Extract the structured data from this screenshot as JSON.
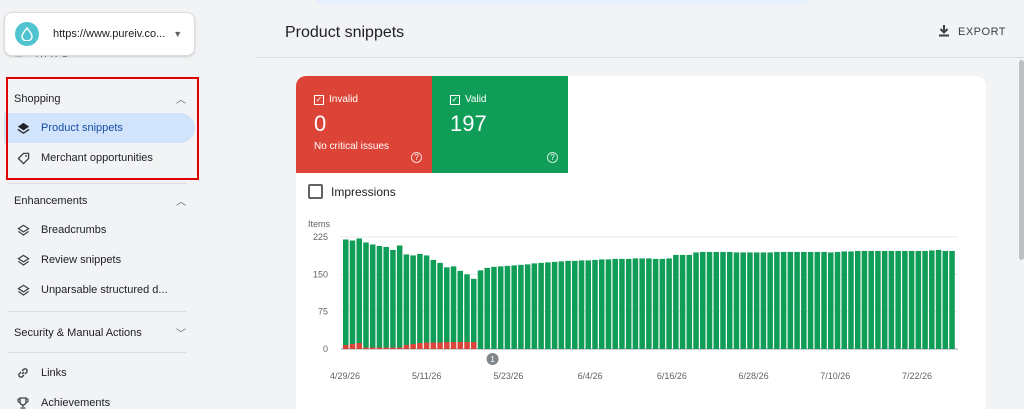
{
  "sidebar": {
    "property": {
      "url": "https://www.pureiv.co..."
    },
    "shopping": {
      "title": "Shopping",
      "items": [
        {
          "label": "Product snippets",
          "active": true
        },
        {
          "label": "Merchant opportunities",
          "active": false
        }
      ]
    },
    "enhancements": {
      "title": "Enhancements",
      "items": [
        {
          "label": "Breadcrumbs"
        },
        {
          "label": "Review snippets"
        },
        {
          "label": "Unparsable structured d..."
        }
      ]
    },
    "security": {
      "title": "Security & Manual Actions"
    },
    "other": [
      {
        "label": "Links"
      },
      {
        "label": "Achievements"
      }
    ]
  },
  "header": {
    "title": "Product snippets",
    "export_label": "EXPORT"
  },
  "stats": {
    "invalid": {
      "label": "Invalid",
      "value": "0",
      "sub": "No critical issues"
    },
    "valid": {
      "label": "Valid",
      "value": "197"
    }
  },
  "impressions_label": "Impressions",
  "colors": {
    "invalid": "#db4437",
    "valid": "#0f9d58",
    "active_nav": "#d2e3fc"
  },
  "chart_data": {
    "type": "bar",
    "stacked": true,
    "ylabel": "Items",
    "ylim": [
      0,
      225
    ],
    "yticks": [
      0,
      75,
      150,
      225
    ],
    "xtick_labels": [
      "4/29/26",
      "5/11/26",
      "5/23/26",
      "6/4/26",
      "6/16/26",
      "6/28/26",
      "7/10/26",
      "7/22/26"
    ],
    "annotation": "1",
    "series": [
      {
        "color": "#db4437",
        "values": [
          8,
          10,
          12,
          3,
          3,
          3,
          3,
          3,
          3,
          8,
          10,
          12,
          13,
          13,
          13,
          14,
          14,
          14,
          14,
          14,
          0,
          0,
          0,
          0,
          0,
          0,
          0,
          0,
          0,
          0,
          0,
          0,
          0,
          0,
          0,
          0,
          0,
          0,
          0,
          0,
          0,
          0,
          0,
          0,
          0,
          0,
          0,
          0,
          0,
          0,
          0,
          0,
          0,
          0,
          0,
          0,
          0,
          0,
          0,
          0,
          0,
          0,
          0,
          0,
          0,
          0,
          0,
          0,
          0,
          0,
          0,
          0,
          0,
          0,
          0,
          0,
          0,
          0,
          0,
          0,
          0,
          0,
          0,
          0,
          0,
          0,
          0,
          0,
          0,
          0,
          0
        ]
      },
      {
        "color": "#0f9d58",
        "values": [
          212,
          208,
          210,
          211,
          207,
          204,
          202,
          196,
          205,
          182,
          178,
          179,
          175,
          166,
          160,
          150,
          152,
          143,
          136,
          127,
          158,
          163,
          165,
          166,
          167,
          168,
          169,
          170,
          172,
          173,
          174,
          175,
          176,
          177,
          177,
          178,
          178,
          179,
          180,
          180,
          181,
          181,
          181,
          182,
          182,
          182,
          181,
          181,
          182,
          189,
          189,
          189,
          194,
          195,
          195,
          195,
          195,
          195,
          194,
          194,
          194,
          194,
          194,
          194,
          195,
          195,
          195,
          195,
          195,
          195,
          195,
          195,
          194,
          195,
          196,
          196,
          197,
          197,
          197,
          197,
          197,
          197,
          197,
          197,
          197,
          197,
          197,
          198,
          199,
          197,
          197
        ]
      }
    ]
  }
}
